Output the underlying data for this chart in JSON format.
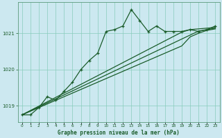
{
  "title": "Graphe pression niveau de la mer (hPa)",
  "bg_color": "#cce8f0",
  "grid_color": "#88ccbb",
  "line_color": "#1a5c2a",
  "xlim": [
    -0.5,
    23.5
  ],
  "ylim": [
    1018.55,
    1021.85
  ],
  "yticks": [
    1019,
    1020,
    1021
  ],
  "xticks": [
    0,
    1,
    2,
    3,
    4,
    5,
    6,
    7,
    8,
    9,
    10,
    11,
    12,
    13,
    14,
    15,
    16,
    17,
    18,
    19,
    20,
    21,
    22,
    23
  ],
  "wiggly_x": [
    0,
    1,
    2,
    3,
    4,
    5,
    6,
    7,
    8,
    9,
    10,
    11,
    12,
    13,
    14,
    15,
    16,
    17,
    18,
    19,
    20,
    21,
    22,
    23
  ],
  "wiggly_y": [
    1018.75,
    1018.75,
    1018.95,
    1019.25,
    1019.15,
    1019.4,
    1019.65,
    1020.0,
    1020.25,
    1020.45,
    1021.05,
    1021.1,
    1021.2,
    1021.65,
    1021.35,
    1021.05,
    1021.2,
    1021.05,
    1021.05,
    1021.05,
    1021.1,
    1021.05,
    1021.1,
    1021.2
  ],
  "straight1_x": [
    0,
    1,
    2,
    3,
    4,
    5,
    6,
    7,
    8,
    9,
    10,
    11,
    12,
    13,
    14,
    15,
    16,
    17,
    18,
    19,
    20,
    21,
    22,
    23
  ],
  "straight1_y": [
    1018.75,
    1018.87,
    1018.99,
    1019.11,
    1019.23,
    1019.35,
    1019.47,
    1019.59,
    1019.71,
    1019.83,
    1019.95,
    1020.07,
    1020.19,
    1020.31,
    1020.43,
    1020.55,
    1020.67,
    1020.79,
    1020.91,
    1021.03,
    1021.1,
    1021.12,
    1021.14,
    1021.16
  ],
  "straight2_x": [
    0,
    1,
    2,
    3,
    4,
    5,
    6,
    7,
    8,
    9,
    10,
    11,
    12,
    13,
    14,
    15,
    16,
    17,
    18,
    19,
    20,
    21,
    22,
    23
  ],
  "straight2_y": [
    1018.75,
    1018.86,
    1018.97,
    1019.08,
    1019.19,
    1019.3,
    1019.41,
    1019.52,
    1019.63,
    1019.74,
    1019.85,
    1019.96,
    1020.07,
    1020.18,
    1020.29,
    1020.4,
    1020.51,
    1020.62,
    1020.73,
    1020.84,
    1020.95,
    1021.06,
    1021.1,
    1021.14
  ],
  "straight3_x": [
    0,
    1,
    2,
    3,
    4,
    5,
    6,
    7,
    8,
    9,
    10,
    11,
    12,
    13,
    14,
    15,
    16,
    17,
    18,
    19,
    20,
    21,
    22,
    23
  ],
  "straight3_y": [
    1018.75,
    1018.85,
    1018.95,
    1019.05,
    1019.15,
    1019.25,
    1019.35,
    1019.45,
    1019.55,
    1019.65,
    1019.75,
    1019.85,
    1019.95,
    1020.05,
    1020.15,
    1020.25,
    1020.35,
    1020.45,
    1020.55,
    1020.65,
    1020.9,
    1021.0,
    1021.08,
    1021.12
  ]
}
